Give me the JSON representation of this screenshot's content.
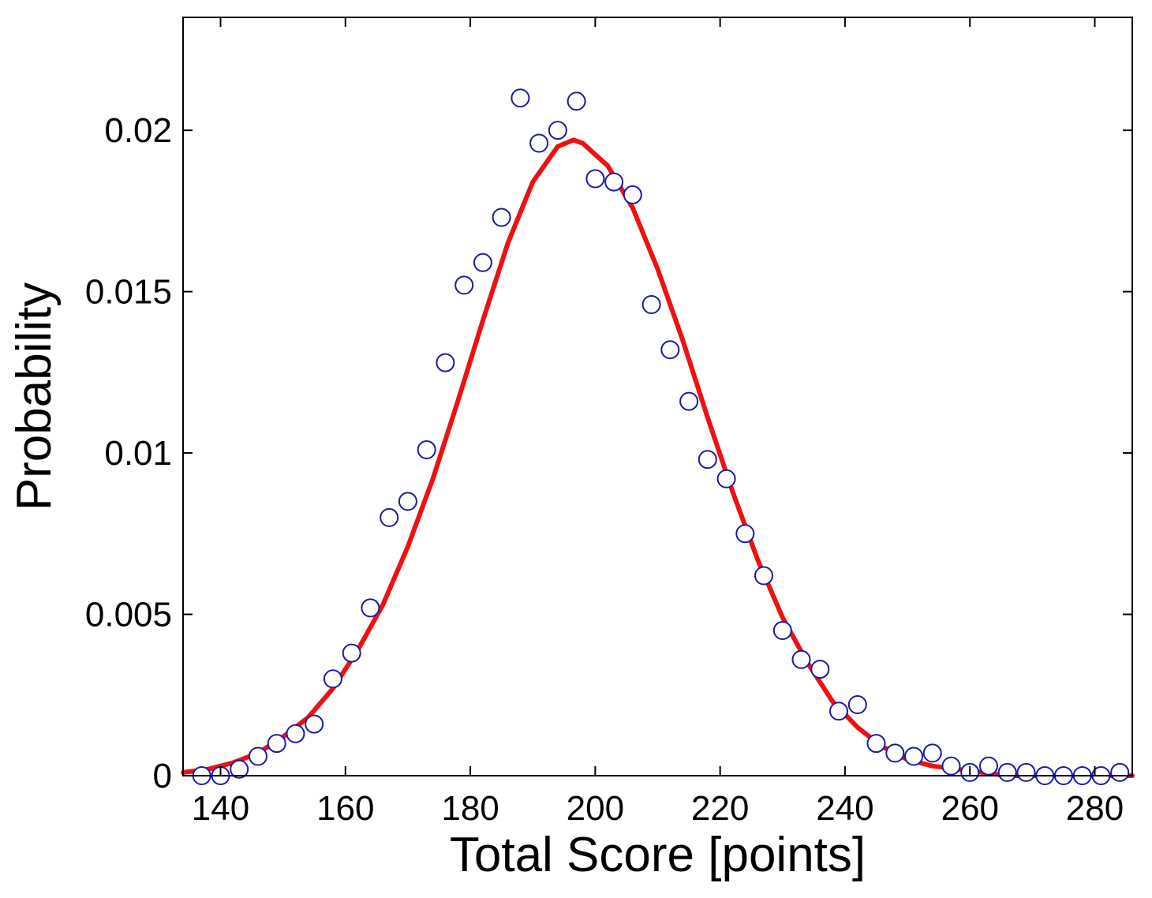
{
  "chart_data": {
    "type": "scatter",
    "title": "",
    "xlabel": "Total Score [points]",
    "ylabel": "Probability",
    "xlim": [
      134,
      286
    ],
    "ylim": [
      0,
      0.0235
    ],
    "x_ticks": [
      140,
      160,
      180,
      200,
      220,
      240,
      260,
      280
    ],
    "y_ticks": [
      0,
      0.005,
      0.01,
      0.015,
      0.02
    ],
    "x_tick_labels": [
      "140",
      "160",
      "180",
      "200",
      "220",
      "240",
      "260",
      "280"
    ],
    "y_tick_labels": [
      "0",
      "0.005",
      "0.01",
      "0.015",
      "0.02"
    ],
    "grid": false,
    "legend": "none",
    "series": [
      {
        "kind": "markers",
        "marker": "open-circle",
        "color": "#1a1aa6",
        "x": [
          137,
          140,
          143,
          146,
          149,
          152,
          155,
          158,
          161,
          164,
          167,
          170,
          173,
          176,
          179,
          182,
          185,
          188,
          191,
          194,
          197,
          200,
          203,
          206,
          209,
          212,
          215,
          218,
          221,
          224,
          227,
          230,
          233,
          236,
          239,
          242,
          245,
          248,
          251,
          254,
          257,
          260,
          263,
          266,
          269,
          272,
          275,
          278,
          281,
          284
        ],
        "y": [
          0.0,
          0.0,
          0.0002,
          0.0006,
          0.001,
          0.0013,
          0.0016,
          0.003,
          0.0038,
          0.0052,
          0.008,
          0.0085,
          0.0101,
          0.0128,
          0.0152,
          0.0159,
          0.0173,
          0.021,
          0.0196,
          0.02,
          0.0209,
          0.0185,
          0.0184,
          0.018,
          0.0146,
          0.0132,
          0.0116,
          0.0098,
          0.0092,
          0.0075,
          0.0062,
          0.0045,
          0.0036,
          0.0033,
          0.002,
          0.0022,
          0.001,
          0.0007,
          0.0006,
          0.0007,
          0.0003,
          0.0001,
          0.0003,
          0.0001,
          0.0001,
          0.0,
          0.0,
          0.0,
          0.0,
          0.0001
        ]
      },
      {
        "kind": "line",
        "color": "#ee1111",
        "x": [
          134,
          138,
          142,
          146,
          150,
          154,
          158,
          162,
          166,
          170,
          174,
          178,
          182,
          186,
          190,
          194,
          196.5,
          198,
          202,
          206,
          210,
          214,
          218,
          222,
          226,
          230,
          234,
          238,
          242,
          246,
          250,
          254,
          258,
          262,
          266,
          270,
          274,
          278,
          282,
          286
        ],
        "y": [
          0.0001,
          0.0002,
          0.0004,
          0.0007,
          0.0012,
          0.0018,
          0.0027,
          0.0039,
          0.0053,
          0.0071,
          0.0092,
          0.0116,
          0.0141,
          0.0165,
          0.0184,
          0.0195,
          0.0197,
          0.0196,
          0.0189,
          0.0176,
          0.0157,
          0.0135,
          0.0111,
          0.0088,
          0.0067,
          0.0049,
          0.0035,
          0.0023,
          0.0015,
          0.0009,
          0.0005,
          0.0003,
          0.0002,
          0.0001,
          0.0,
          0.0,
          0.0,
          0.0,
          0.0,
          0.0
        ]
      }
    ]
  }
}
